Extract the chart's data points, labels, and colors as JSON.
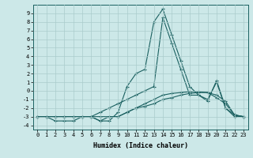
{
  "title": "",
  "xlabel": "Humidex (Indice chaleur)",
  "background_color": "#cce8e8",
  "grid_color": "#aacccc",
  "line_color": "#1a6060",
  "x_values": [
    0,
    1,
    2,
    3,
    4,
    5,
    6,
    7,
    8,
    9,
    10,
    11,
    12,
    13,
    14,
    15,
    16,
    17,
    18,
    19,
    20,
    21,
    22,
    23
  ],
  "series1": [
    -3,
    -3,
    -3.5,
    -3.5,
    -3.5,
    -3,
    -3,
    -3.5,
    -3.5,
    -2.5,
    0.5,
    2,
    2.5,
    8,
    9.5,
    6.5,
    3.5,
    0.5,
    -0.5,
    -1,
    1,
    -2,
    -3,
    -3
  ],
  "series2": [
    -3,
    -3,
    -3,
    -3,
    -3,
    -3,
    -3,
    -2.5,
    -2,
    -1.5,
    -1,
    -0.5,
    0,
    0.5,
    8.5,
    5.5,
    2.5,
    -0.5,
    -0.5,
    -1.2,
    1.2,
    -2,
    -2.8,
    -3
  ],
  "series3": [
    -3,
    -3,
    -3,
    -3,
    -3,
    -3,
    -3,
    -3,
    -3,
    -3,
    -2.5,
    -2,
    -1.8,
    -1.5,
    -1,
    -0.8,
    -0.5,
    -0.3,
    -0.2,
    -0.2,
    -0.8,
    -1.5,
    -2.8,
    -3
  ],
  "series4": [
    -3,
    -3,
    -3,
    -3,
    -3,
    -3,
    -3,
    -3.5,
    -3,
    -3,
    -2.5,
    -2,
    -1.5,
    -1,
    -0.5,
    -0.3,
    -0.2,
    -0.1,
    -0.1,
    -0.2,
    -0.5,
    -1.2,
    -2.8,
    -3
  ],
  "xlim": [
    -0.5,
    23.5
  ],
  "ylim": [
    -4.5,
    10.0
  ],
  "ytick_labels": [
    "9",
    "8",
    "7",
    "6",
    "5",
    "4",
    "3",
    "2",
    "1",
    "0",
    "-1",
    "-2",
    "-3",
    "-4"
  ],
  "ytick_vals": [
    9,
    8,
    7,
    6,
    5,
    4,
    3,
    2,
    1,
    0,
    -1,
    -2,
    -3,
    -4
  ],
  "xtick_vals": [
    0,
    1,
    2,
    3,
    4,
    5,
    6,
    7,
    8,
    9,
    10,
    11,
    12,
    13,
    14,
    15,
    16,
    17,
    18,
    19,
    20,
    21,
    22,
    23
  ],
  "marker": "+",
  "markersize": 3,
  "linewidth": 0.8
}
